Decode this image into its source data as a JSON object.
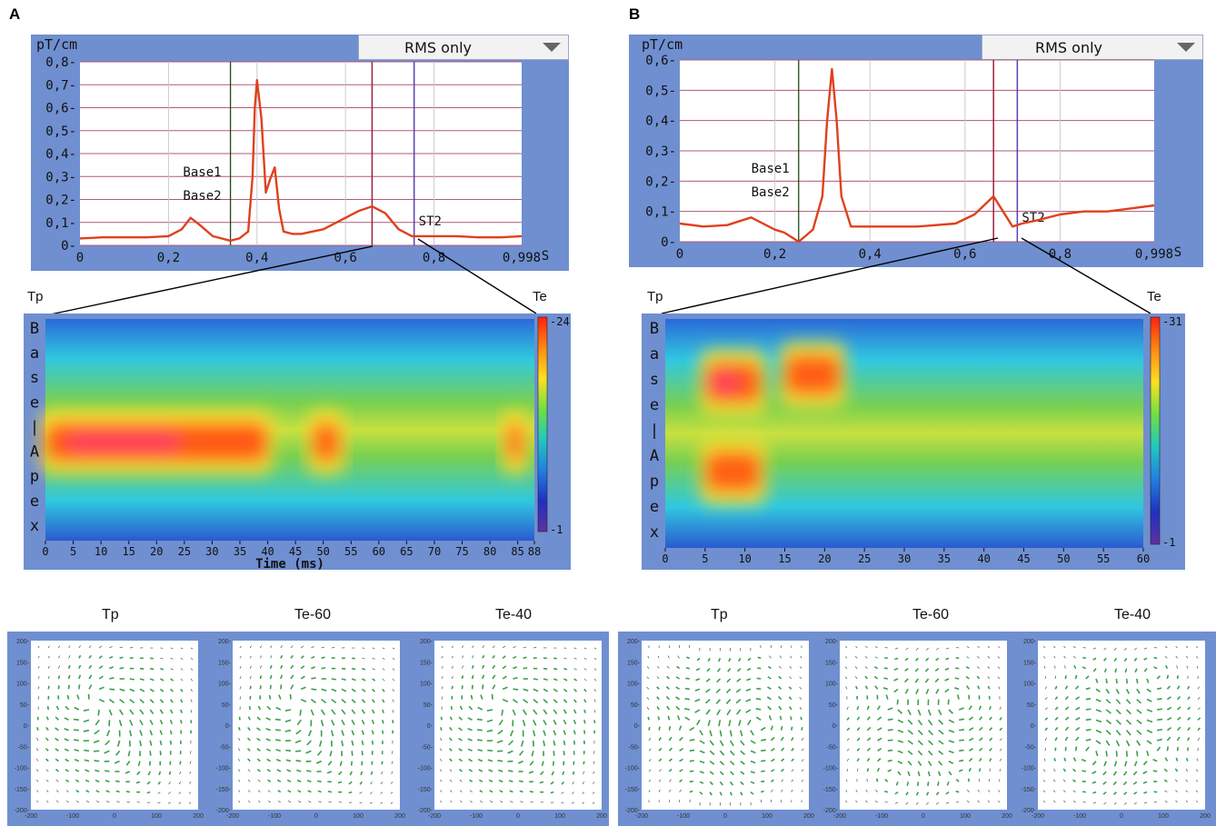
{
  "labels": {
    "panel_a": "A",
    "panel_b": "B",
    "tp": "Tp",
    "te": "Te"
  },
  "ecg": {
    "unit": "pT/cm",
    "x_unit": "S",
    "dropdown": "RMS only",
    "base1": "Base1",
    "base2": "Base2",
    "st2": "ST2",
    "colors": {
      "trace": "#e0401c",
      "grid": "#b05a78",
      "base_line": "#1f4a1f",
      "tp_line": "#a0203a",
      "st2_line": "#5a40b0"
    }
  },
  "heatmap": {
    "row_letters": [
      "B",
      "a",
      "s",
      "e",
      "|",
      "A",
      "p",
      "e",
      "x"
    ],
    "time_label": "Time (ms)"
  },
  "colorbar": {
    "colors": [
      "#ff2010",
      "#ff8a10",
      "#ffe020",
      "#70e040",
      "#20c8c0",
      "#2080e0",
      "#2030c0",
      "#6030a0"
    ]
  },
  "maps": {
    "titles": [
      "Tp",
      "Te-60",
      "Te-40"
    ],
    "y_ticks": [
      "200",
      "150",
      "100",
      "50",
      "0",
      "-50",
      "-100",
      "-150",
      "-200"
    ],
    "x_ticks": [
      "-200",
      "-100",
      "0",
      "100",
      "200"
    ],
    "arrow_color": "#3aa04a"
  },
  "chart_data": [
    {
      "type": "line",
      "panel": "A",
      "title": "",
      "ylabel": "pT/cm",
      "xlabel": "S",
      "xlim": [
        0,
        0.998
      ],
      "ylim": [
        0,
        0.8
      ],
      "x_ticks": [
        "0",
        "0,2",
        "0,4",
        "0,6",
        "0,8",
        "0,998"
      ],
      "y_ticks": [
        "0",
        "0,1",
        "0,2",
        "0,3",
        "0,4",
        "0,5",
        "0,6",
        "0,7",
        "0,8"
      ],
      "annotations": {
        "Base1": 0.34,
        "Base2": 0.34,
        "Tp": 0.66,
        "ST2": 0.755
      },
      "x": [
        0,
        0.05,
        0.1,
        0.15,
        0.2,
        0.23,
        0.25,
        0.27,
        0.3,
        0.32,
        0.34,
        0.36,
        0.38,
        0.39,
        0.395,
        0.4,
        0.41,
        0.42,
        0.43,
        0.44,
        0.45,
        0.46,
        0.48,
        0.5,
        0.55,
        0.6,
        0.63,
        0.66,
        0.69,
        0.72,
        0.75,
        0.78,
        0.85,
        0.9,
        0.95,
        0.998
      ],
      "y": [
        0.03,
        0.035,
        0.035,
        0.035,
        0.04,
        0.07,
        0.12,
        0.09,
        0.04,
        0.03,
        0.02,
        0.03,
        0.06,
        0.3,
        0.6,
        0.72,
        0.55,
        0.23,
        0.29,
        0.34,
        0.16,
        0.06,
        0.05,
        0.05,
        0.07,
        0.12,
        0.15,
        0.17,
        0.14,
        0.07,
        0.04,
        0.04,
        0.04,
        0.035,
        0.035,
        0.04
      ]
    },
    {
      "type": "line",
      "panel": "B",
      "title": "",
      "ylabel": "pT/cm",
      "xlabel": "S",
      "xlim": [
        0,
        0.998
      ],
      "ylim": [
        0,
        0.6
      ],
      "x_ticks": [
        "0",
        "0,2",
        "0,4",
        "0,6",
        "0,8",
        "0,998"
      ],
      "y_ticks": [
        "0",
        "0,1",
        "0,2",
        "0,3",
        "0,4",
        "0,5",
        "0,6"
      ],
      "annotations": {
        "Base1": 0.25,
        "Base2": 0.25,
        "Tp": 0.66,
        "ST2": 0.71
      },
      "x": [
        0,
        0.05,
        0.1,
        0.15,
        0.2,
        0.22,
        0.25,
        0.28,
        0.3,
        0.31,
        0.32,
        0.33,
        0.34,
        0.36,
        0.4,
        0.5,
        0.58,
        0.62,
        0.66,
        0.68,
        0.7,
        0.72,
        0.75,
        0.8,
        0.85,
        0.9,
        0.95,
        0.998
      ],
      "y": [
        0.06,
        0.05,
        0.055,
        0.08,
        0.04,
        0.03,
        0.0,
        0.04,
        0.15,
        0.4,
        0.57,
        0.4,
        0.15,
        0.05,
        0.05,
        0.05,
        0.06,
        0.09,
        0.15,
        0.1,
        0.05,
        0.06,
        0.07,
        0.09,
        0.1,
        0.1,
        0.11,
        0.12
      ]
    },
    {
      "type": "heatmap",
      "panel": "A",
      "xlabel": "Time (ms)",
      "x_ticks": [
        "0",
        "5",
        "10",
        "15",
        "20",
        "25",
        "30",
        "35",
        "40",
        "45",
        "50",
        "55",
        "60",
        "65",
        "70",
        "75",
        "80",
        "85",
        "88"
      ],
      "xlim": [
        0,
        88
      ],
      "colorbar_ticks": [
        "24",
        "1"
      ],
      "blobs": [
        {
          "t": [
            0,
            40
          ],
          "row": 5.0,
          "value": 24
        },
        {
          "t": [
            48,
            53
          ],
          "row": 5.0,
          "value": 20
        },
        {
          "t": [
            83,
            86
          ],
          "row": 5.0,
          "value": 16
        }
      ]
    },
    {
      "type": "heatmap",
      "panel": "B",
      "xlabel": "",
      "x_ticks": [
        "0",
        "5",
        "10",
        "15",
        "20",
        "25",
        "30",
        "35",
        "40",
        "45",
        "50",
        "55",
        "60"
      ],
      "xlim": [
        0,
        60
      ],
      "colorbar_ticks": [
        "31",
        "1"
      ],
      "blobs": [
        {
          "t": [
            5,
            12
          ],
          "row": 2.5,
          "value": 31
        },
        {
          "t": [
            15,
            22
          ],
          "row": 2.2,
          "value": 29
        },
        {
          "t": [
            5,
            12
          ],
          "row": 6.0,
          "value": 28
        }
      ]
    }
  ]
}
